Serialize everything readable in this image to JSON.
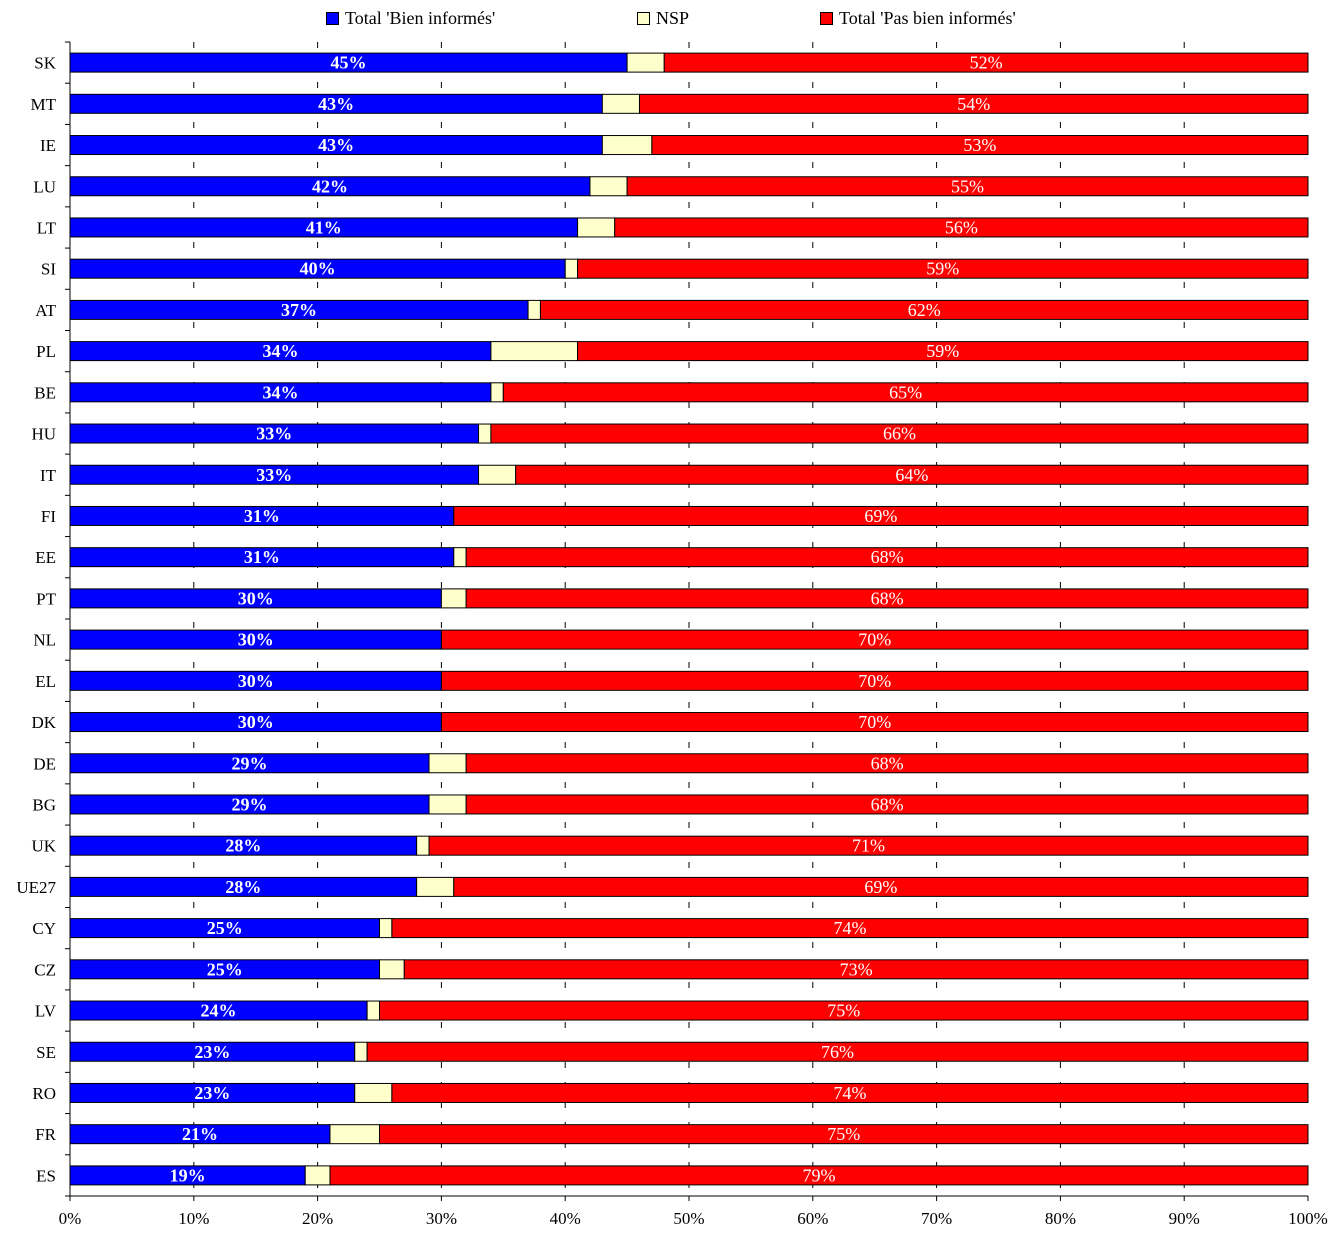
{
  "chart_data": {
    "type": "bar",
    "orientation": "horizontal",
    "stacked": "100%",
    "categories": [
      "SK",
      "MT",
      "IE",
      "LU",
      "LT",
      "SI",
      "AT",
      "PL",
      "BE",
      "HU",
      "IT",
      "FI",
      "EE",
      "PT",
      "NL",
      "EL",
      "DK",
      "DE",
      "BG",
      "UK",
      "UE27",
      "CY",
      "CZ",
      "LV",
      "SE",
      "RO",
      "FR",
      "ES"
    ],
    "series": [
      {
        "name": "Total 'Bien informés'",
        "color": "#0000ff",
        "values": [
          45,
          43,
          43,
          42,
          41,
          40,
          37,
          34,
          34,
          33,
          33,
          31,
          31,
          30,
          30,
          30,
          30,
          29,
          29,
          28,
          28,
          25,
          25,
          24,
          23,
          23,
          21,
          19
        ]
      },
      {
        "name": "NSP",
        "color": "#ffffcc",
        "values": [
          3,
          3,
          4,
          3,
          3,
          1,
          1,
          7,
          1,
          1,
          3,
          0,
          1,
          2,
          0,
          0,
          0,
          3,
          3,
          1,
          3,
          1,
          2,
          1,
          1,
          3,
          4,
          2
        ]
      },
      {
        "name": "Total 'Pas bien informés'",
        "color": "#ff0000",
        "values": [
          52,
          54,
          53,
          55,
          56,
          59,
          62,
          59,
          65,
          66,
          64,
          69,
          68,
          68,
          70,
          70,
          70,
          68,
          68,
          71,
          69,
          74,
          73,
          75,
          76,
          74,
          75,
          79
        ]
      }
    ],
    "x_ticks": [
      "0%",
      "10%",
      "20%",
      "30%",
      "40%",
      "50%",
      "60%",
      "70%",
      "80%",
      "90%",
      "100%"
    ],
    "xlim": [
      0,
      100
    ],
    "grid": true,
    "legend_position": "top"
  }
}
